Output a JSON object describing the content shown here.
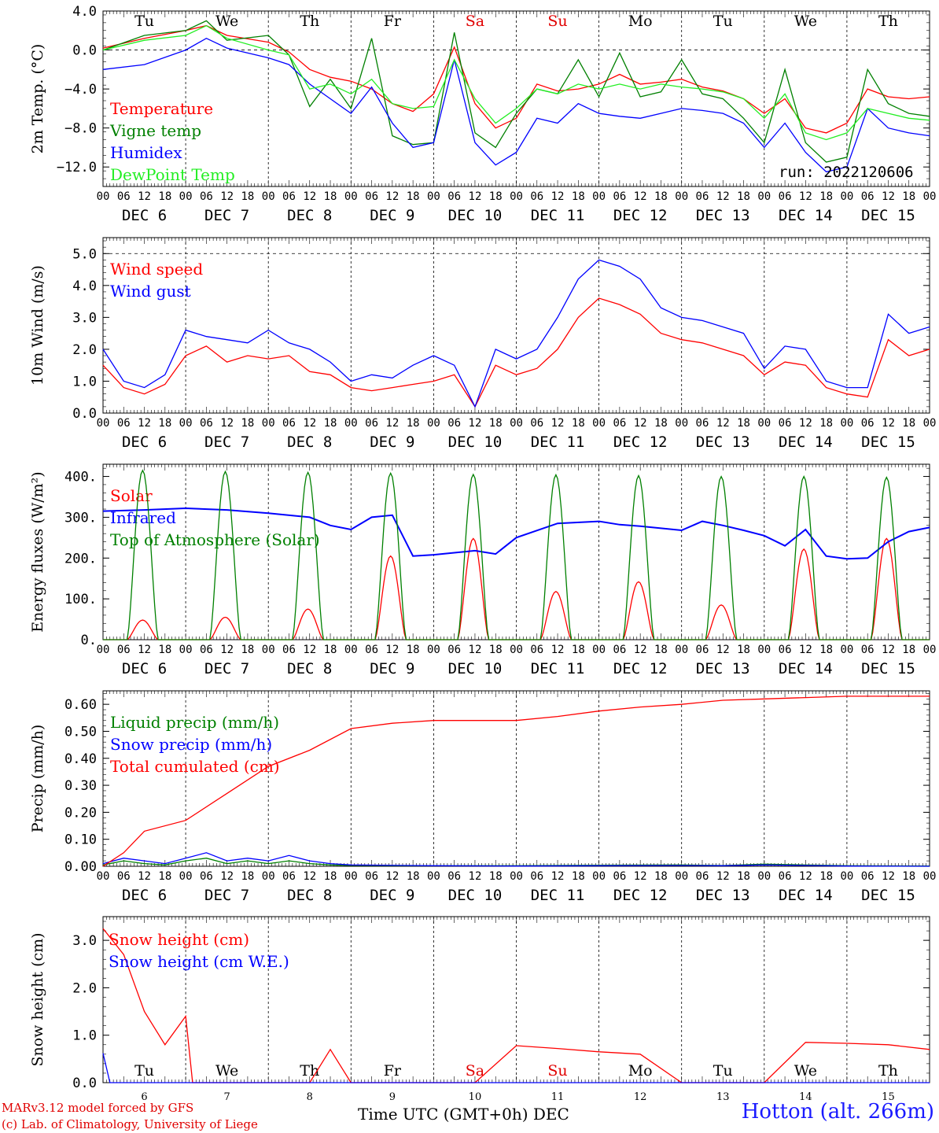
{
  "days": [
    "DEC  6",
    "DEC  7",
    "DEC  8",
    "DEC  9",
    "DEC 10",
    "DEC 11",
    "DEC 12",
    "DEC 13",
    "DEC 14",
    "DEC 15"
  ],
  "hour_ticks": [
    "00",
    "06",
    "12",
    "18"
  ],
  "weekdays": [
    {
      "label": "Tu",
      "color": "#000000"
    },
    {
      "label": "We",
      "color": "#000000"
    },
    {
      "label": "Th",
      "color": "#000000"
    },
    {
      "label": "Fr",
      "color": "#000000"
    },
    {
      "label": "Sa",
      "color": "#e00000"
    },
    {
      "label": "Su",
      "color": "#e00000"
    },
    {
      "label": "Mo",
      "color": "#000000"
    },
    {
      "label": "Tu",
      "color": "#000000"
    },
    {
      "label": "We",
      "color": "#000000"
    },
    {
      "label": "Th",
      "color": "#000000"
    }
  ],
  "snow_day_numbers": [
    "6",
    "7",
    "8",
    "9",
    "10",
    "11",
    "12",
    "13",
    "14",
    "15"
  ],
  "run_label": "run: 2022120606",
  "xaxis_title": "Time UTC (GMT+0h) DEC",
  "footer": {
    "line1": "MARv3.12 model forced by GFS",
    "line2": "(c) Lab. of Climatology, University of Liege"
  },
  "site_title": "Hotton (alt. 266m)",
  "colors": {
    "red": "#ff0000",
    "darkgreen": "#008000",
    "blue": "#0000ff",
    "lightgreen": "#22ee22"
  },
  "chart_data": [
    {
      "type": "line",
      "ylabel": "2m Temp. (°C)",
      "ylim": [
        -14.0,
        4.0
      ],
      "yticks": [
        "4.0",
        "0.0",
        "−4.0",
        "−8.0",
        "−12.0"
      ],
      "ytick_values": [
        4,
        0,
        -4,
        -8,
        -12
      ],
      "series": [
        {
          "name": "Temperature",
          "color": "#ff0000",
          "x": [
            0,
            12,
            24,
            30,
            36,
            48,
            54,
            60,
            66,
            72,
            78,
            84,
            90,
            96,
            102,
            108,
            114,
            120,
            126,
            132,
            138,
            144,
            150,
            156,
            162,
            168,
            174,
            180,
            186,
            192,
            198,
            204,
            210,
            216,
            222,
            228,
            234,
            240
          ],
          "y": [
            0.2,
            1.2,
            2.0,
            2.5,
            1.5,
            0.8,
            -0.2,
            -2.0,
            -2.8,
            -3.2,
            -4.0,
            -5.5,
            -6.3,
            -4.5,
            0.3,
            -5.5,
            -8.0,
            -7.0,
            -3.5,
            -4.2,
            -4.0,
            -3.5,
            -2.5,
            -3.5,
            -3.3,
            -3.0,
            -3.8,
            -4.2,
            -5.0,
            -6.5,
            -5.0,
            -8.0,
            -8.5,
            -7.5,
            -4.0,
            -4.8,
            -5.0,
            -4.8
          ]
        },
        {
          "name": "Vigne temp",
          "color": "#008000",
          "x": [
            0,
            12,
            24,
            30,
            36,
            48,
            54,
            60,
            66,
            72,
            78,
            84,
            90,
            96,
            102,
            108,
            114,
            120,
            126,
            132,
            138,
            144,
            150,
            156,
            162,
            168,
            174,
            180,
            186,
            192,
            198,
            204,
            210,
            216,
            222,
            228,
            234,
            240
          ],
          "y": [
            0.0,
            1.5,
            2.0,
            3.0,
            1.0,
            1.5,
            -0.5,
            -5.8,
            -3.0,
            -6.0,
            1.2,
            -8.8,
            -9.7,
            -9.5,
            1.8,
            -8.5,
            -10.0,
            -6.5,
            -4.0,
            -4.5,
            -1.0,
            -4.8,
            -0.3,
            -4.8,
            -4.3,
            -1.0,
            -4.5,
            -5.0,
            -7.0,
            -9.5,
            -2.0,
            -9.5,
            -11.5,
            -11.0,
            -2.0,
            -5.5,
            -6.5,
            -6.8
          ]
        },
        {
          "name": "Humidex",
          "color": "#0000ff",
          "x": [
            0,
            12,
            24,
            30,
            36,
            48,
            54,
            60,
            66,
            72,
            78,
            84,
            90,
            96,
            102,
            108,
            114,
            120,
            126,
            132,
            138,
            144,
            150,
            156,
            162,
            168,
            174,
            180,
            186,
            192,
            198,
            204,
            210,
            216,
            222,
            228,
            234,
            240
          ],
          "y": [
            -2.0,
            -1.5,
            0.0,
            1.2,
            0.2,
            -0.8,
            -1.5,
            -3.5,
            -5.0,
            -6.5,
            -3.8,
            -7.5,
            -10.0,
            -9.5,
            -1.0,
            -9.5,
            -11.8,
            -10.5,
            -7.0,
            -7.5,
            -5.5,
            -6.5,
            -6.8,
            -7.0,
            -6.5,
            -6.0,
            -6.2,
            -6.5,
            -7.5,
            -10.0,
            -7.5,
            -10.5,
            -12.5,
            -12.0,
            -6.0,
            -8.0,
            -8.5,
            -8.8
          ]
        },
        {
          "name": "DewPoint Temp",
          "color": "#22ee22",
          "x": [
            0,
            12,
            24,
            30,
            36,
            48,
            54,
            60,
            66,
            72,
            78,
            84,
            90,
            96,
            102,
            108,
            114,
            120,
            126,
            132,
            138,
            144,
            150,
            156,
            162,
            168,
            174,
            180,
            186,
            192,
            198,
            204,
            210,
            216,
            222,
            228,
            234,
            240
          ],
          "y": [
            0.0,
            1.0,
            1.5,
            2.5,
            1.2,
            0.0,
            -0.5,
            -4.0,
            -3.5,
            -4.5,
            -3.0,
            -5.5,
            -6.0,
            -5.8,
            -1.0,
            -5.0,
            -7.5,
            -6.0,
            -4.0,
            -4.5,
            -3.5,
            -4.0,
            -3.5,
            -4.0,
            -3.5,
            -3.8,
            -4.0,
            -4.3,
            -5.0,
            -7.0,
            -4.5,
            -8.5,
            -9.2,
            -8.5,
            -6.0,
            -6.5,
            -7.0,
            -7.2
          ]
        }
      ]
    },
    {
      "type": "line",
      "ylabel": "10m Wind (m/s)",
      "ylim": [
        0,
        5.5
      ],
      "yticks": [
        "0.0",
        "1.0",
        "2.0",
        "3.0",
        "4.0",
        "5.0"
      ],
      "ytick_values": [
        0,
        1,
        2,
        3,
        4,
        5
      ],
      "series": [
        {
          "name": "Wind speed",
          "color": "#ff0000",
          "x": [
            0,
            6,
            12,
            18,
            24,
            30,
            36,
            42,
            48,
            54,
            60,
            66,
            72,
            78,
            84,
            90,
            96,
            102,
            108,
            114,
            120,
            126,
            132,
            138,
            144,
            150,
            156,
            162,
            168,
            174,
            180,
            186,
            192,
            198,
            204,
            210,
            216,
            222,
            228,
            234,
            240
          ],
          "y": [
            1.5,
            0.8,
            0.6,
            0.9,
            1.8,
            2.1,
            1.6,
            1.8,
            1.7,
            1.8,
            1.3,
            1.2,
            0.8,
            0.7,
            0.8,
            0.9,
            1.0,
            1.2,
            0.2,
            1.5,
            1.2,
            1.4,
            2.0,
            3.0,
            3.6,
            3.4,
            3.1,
            2.5,
            2.3,
            2.2,
            2.0,
            1.8,
            1.2,
            1.6,
            1.5,
            0.8,
            0.6,
            0.5,
            2.3,
            1.8,
            2.0
          ]
        },
        {
          "name": "Wind gust",
          "color": "#0000ff",
          "x": [
            0,
            6,
            12,
            18,
            24,
            30,
            36,
            42,
            48,
            54,
            60,
            66,
            72,
            78,
            84,
            90,
            96,
            102,
            108,
            114,
            120,
            126,
            132,
            138,
            144,
            150,
            156,
            162,
            168,
            174,
            180,
            186,
            192,
            198,
            204,
            210,
            216,
            222,
            228,
            234,
            240
          ],
          "y": [
            2.0,
            1.0,
            0.8,
            1.2,
            2.6,
            2.4,
            2.3,
            2.2,
            2.6,
            2.2,
            2.0,
            1.6,
            1.0,
            1.2,
            1.1,
            1.5,
            1.8,
            1.5,
            0.2,
            2.0,
            1.7,
            2.0,
            3.0,
            4.2,
            4.8,
            4.6,
            4.2,
            3.3,
            3.0,
            2.9,
            2.7,
            2.5,
            1.4,
            2.1,
            2.0,
            1.0,
            0.8,
            0.8,
            3.1,
            2.5,
            2.7
          ]
        }
      ]
    },
    {
      "type": "line",
      "ylabel": "Energy fluxes (W/m²)",
      "ylim": [
        0,
        430
      ],
      "yticks": [
        "0.",
        "100.",
        "200.",
        "300.",
        "400."
      ],
      "ytick_values": [
        0,
        100,
        200,
        300,
        400
      ],
      "series": [
        {
          "name": "Solar",
          "color": "#ff0000",
          "day_peaks": [
            48,
            55,
            75,
            205,
            248,
            118,
            142,
            85,
            222,
            248
          ]
        },
        {
          "name": "Infrared",
          "color": "#0000ff",
          "x": [
            0,
            12,
            24,
            36,
            48,
            60,
            66,
            72,
            78,
            84,
            90,
            96,
            108,
            114,
            120,
            132,
            144,
            150,
            156,
            168,
            174,
            180,
            186,
            192,
            198,
            204,
            210,
            216,
            222,
            228,
            234,
            240
          ],
          "y": [
            315,
            318,
            322,
            318,
            310,
            300,
            280,
            270,
            300,
            305,
            205,
            208,
            218,
            210,
            250,
            285,
            290,
            282,
            278,
            268,
            290,
            280,
            268,
            255,
            230,
            270,
            205,
            198,
            200,
            240,
            265,
            275
          ]
        },
        {
          "name": "Top of Atmosphere (Solar)",
          "color": "#008000",
          "day_peaks": [
            415,
            412,
            410,
            408,
            405,
            404,
            402,
            400,
            400,
            398
          ]
        }
      ]
    },
    {
      "type": "line",
      "ylabel": "Precip (mm/h)",
      "ylim": [
        0,
        0.65
      ],
      "yticks": [
        "0.00",
        "0.10",
        "0.20",
        "0.30",
        "0.40",
        "0.50",
        "0.60"
      ],
      "ytick_values": [
        0,
        0.1,
        0.2,
        0.3,
        0.4,
        0.5,
        0.6
      ],
      "series": [
        {
          "name": "Liquid precip (mm/h)",
          "color": "#008000",
          "x": [
            0,
            6,
            12,
            18,
            24,
            30,
            36,
            42,
            48,
            54,
            60,
            66,
            72,
            96,
            120,
            144,
            168,
            180,
            192,
            216,
            240
          ],
          "y": [
            0.005,
            0.02,
            0.01,
            0.005,
            0.02,
            0.03,
            0.01,
            0.02,
            0.01,
            0.02,
            0.01,
            0.005,
            0.003,
            0.002,
            0.002,
            0.004,
            0.005,
            0.003,
            0.008,
            0.002,
            0.001
          ]
        },
        {
          "name": "Snow precip (mm/h)",
          "color": "#0000ff",
          "x": [
            0,
            6,
            12,
            18,
            24,
            30,
            36,
            42,
            48,
            54,
            60,
            66,
            72,
            96,
            120,
            144,
            168,
            180,
            192,
            216,
            240
          ],
          "y": [
            0.01,
            0.03,
            0.02,
            0.01,
            0.03,
            0.05,
            0.02,
            0.03,
            0.02,
            0.04,
            0.02,
            0.01,
            0.005,
            0.002,
            0.001,
            0.002,
            0.003,
            0.002,
            0.005,
            0.001,
            0.0
          ]
        },
        {
          "name": "Total cumulated (cm)",
          "color": "#ff0000",
          "x": [
            0,
            6,
            12,
            24,
            36,
            48,
            60,
            72,
            84,
            96,
            108,
            120,
            132,
            144,
            156,
            168,
            180,
            192,
            204,
            216,
            228,
            240
          ],
          "y": [
            0.0,
            0.05,
            0.13,
            0.17,
            0.27,
            0.37,
            0.43,
            0.51,
            0.53,
            0.54,
            0.54,
            0.54,
            0.555,
            0.575,
            0.59,
            0.6,
            0.615,
            0.62,
            0.625,
            0.63,
            0.63,
            0.63
          ]
        }
      ]
    },
    {
      "type": "line",
      "ylabel": "Snow height (cm)",
      "ylim": [
        0,
        3.5
      ],
      "yticks": [
        "0.0",
        "1.0",
        "2.0",
        "3.0"
      ],
      "ytick_values": [
        0,
        1,
        2,
        3
      ],
      "series": [
        {
          "name": "Snow height (cm)",
          "color": "#ff0000",
          "x": [
            0,
            6,
            12,
            18,
            24,
            26,
            30,
            36,
            42,
            48,
            54,
            60,
            66,
            72,
            78,
            84,
            90,
            96,
            108,
            120,
            132,
            144,
            156,
            168,
            180,
            192,
            204,
            216,
            228,
            240
          ],
          "y": [
            3.25,
            2.7,
            1.5,
            0.8,
            1.4,
            0.0,
            0.0,
            0.0,
            0.0,
            0.0,
            0.0,
            0.0,
            0.7,
            0.0,
            0.0,
            0.0,
            0.0,
            0.0,
            0.0,
            0.78,
            0.72,
            0.65,
            0.6,
            0.0,
            0.0,
            0.0,
            0.85,
            0.83,
            0.8,
            0.7
          ]
        },
        {
          "name": "Snow height (cm W.E.)",
          "color": "#0000ff",
          "x": [
            0,
            2,
            240
          ],
          "y": [
            0.62,
            0.0,
            0.0
          ]
        }
      ]
    }
  ]
}
